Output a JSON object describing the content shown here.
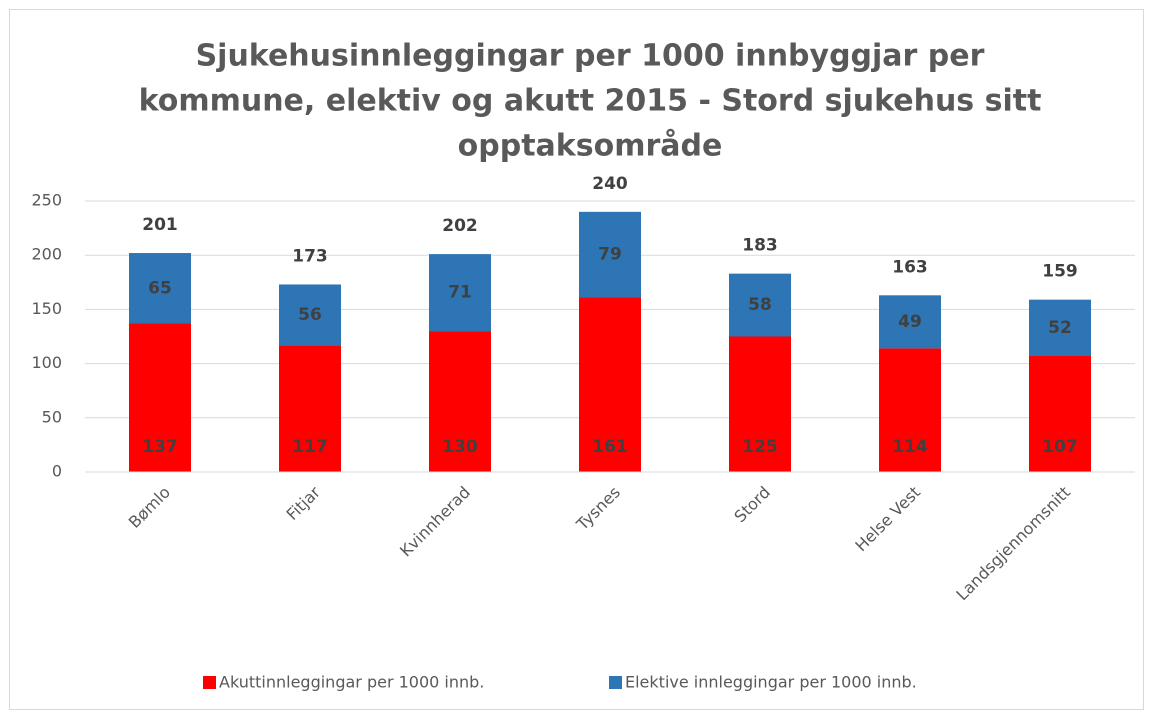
{
  "chart_data": {
    "type": "stacked_bar",
    "title": [
      "Sjukehusinnleggingar per 1000 innbyggjar per",
      "kommune, elektiv og akutt 2015 - Stord sjukehus sitt",
      "opptaksområde"
    ],
    "categories": [
      "Bømlo",
      "Fitjar",
      "Kvinnherad",
      "Tysnes",
      "Stord",
      "Helse Vest",
      "Landsgjennomsnitt"
    ],
    "series": [
      {
        "name": "Akuttinnleggingar per 1000 innb.",
        "color": "#ff0000",
        "values": [
          137,
          117,
          130,
          161,
          125,
          114,
          107
        ]
      },
      {
        "name": "Elektive innleggingar per 1000 innb.",
        "color": "#2e75b6",
        "values": [
          65,
          56,
          71,
          79,
          58,
          49,
          52
        ]
      }
    ],
    "totals": [
      201,
      173,
      202,
      240,
      183,
      163,
      159
    ],
    "ylim": [
      0,
      250
    ],
    "yticks": [
      0,
      50,
      100,
      150,
      200,
      250
    ],
    "grid": true,
    "legend": "bottom"
  }
}
